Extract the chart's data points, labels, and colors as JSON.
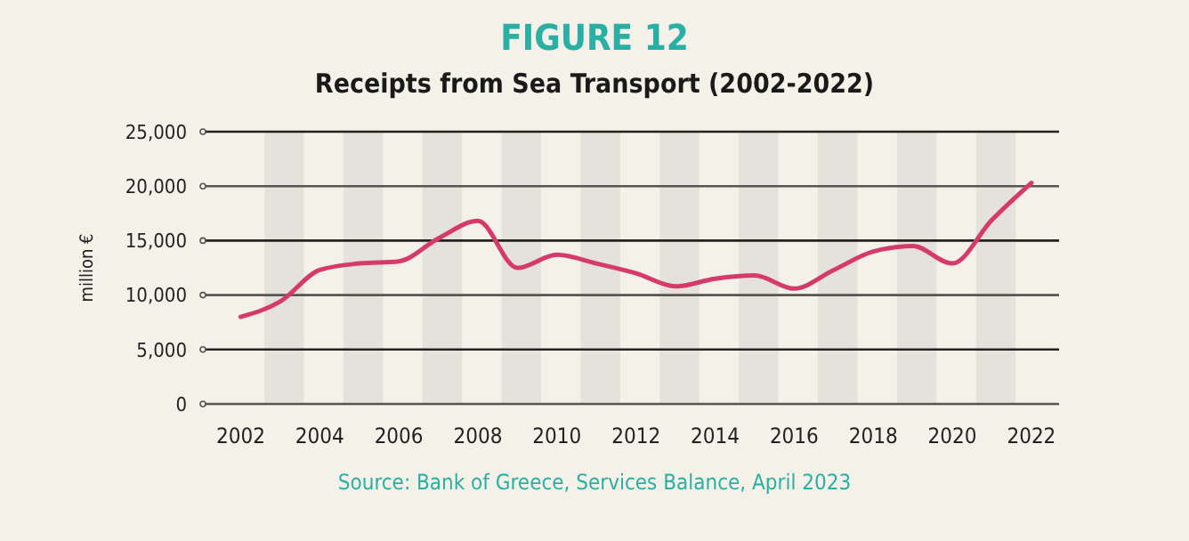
{
  "chart_data": {
    "type": "line",
    "title": "FIGURE 12",
    "subtitle": "Receipts from Sea Transport (2002-2022)",
    "ylabel": "million €",
    "x": [
      2002,
      2003,
      2004,
      2005,
      2006,
      2007,
      2008,
      2009,
      2010,
      2011,
      2012,
      2013,
      2014,
      2015,
      2016,
      2017,
      2018,
      2019,
      2020,
      2021,
      2022
    ],
    "series": [
      {
        "color": "#d63a6a",
        "values": [
          8000,
          9400,
          12300,
          12900,
          13100,
          15200,
          16800,
          12500,
          13700,
          12900,
          12000,
          10800,
          11500,
          11800,
          10600,
          12300,
          14000,
          14500,
          12900,
          16900,
          20300
        ]
      }
    ],
    "xlim": [
      2001,
      2022.7
    ],
    "xticks": [
      2002,
      2004,
      2006,
      2008,
      2010,
      2012,
      2014,
      2016,
      2018,
      2020,
      2022
    ],
    "ylim": [
      0,
      25000
    ],
    "yticks": [
      {
        "value": 0,
        "label": "0"
      },
      {
        "value": 5000,
        "label": "5,000"
      },
      {
        "value": 10000,
        "label": "10,000"
      },
      {
        "value": 15000,
        "label": "15,000"
      },
      {
        "value": 20000,
        "label": "20,000"
      },
      {
        "value": 25000,
        "label": "25,000"
      }
    ],
    "grid": "y",
    "marker": "none",
    "line_style": "solid",
    "bands": [
      {
        "axis": "x",
        "from": 2002.6,
        "to": 2003.6,
        "color": "#e4e2da"
      },
      {
        "axis": "x",
        "from": 2004.6,
        "to": 2005.6,
        "color": "#e4e2da"
      },
      {
        "axis": "x",
        "from": 2006.6,
        "to": 2007.6,
        "color": "#e4e2da"
      },
      {
        "axis": "x",
        "from": 2008.6,
        "to": 2009.6,
        "color": "#e4e2da"
      },
      {
        "axis": "x",
        "from": 2010.6,
        "to": 2011.6,
        "color": "#e4e2da"
      },
      {
        "axis": "x",
        "from": 2012.6,
        "to": 2013.6,
        "color": "#e4e2da"
      },
      {
        "axis": "x",
        "from": 2014.6,
        "to": 2015.6,
        "color": "#e4e2da"
      },
      {
        "axis": "x",
        "from": 2016.6,
        "to": 2017.6,
        "color": "#e4e2da"
      },
      {
        "axis": "x",
        "from": 2018.6,
        "to": 2019.6,
        "color": "#e4e2da"
      },
      {
        "axis": "x",
        "from": 2020.6,
        "to": 2021.6,
        "color": "#e4e2da"
      }
    ],
    "annotations": [
      "Source: Bank of Greece, Services Balance, April 2023"
    ]
  }
}
